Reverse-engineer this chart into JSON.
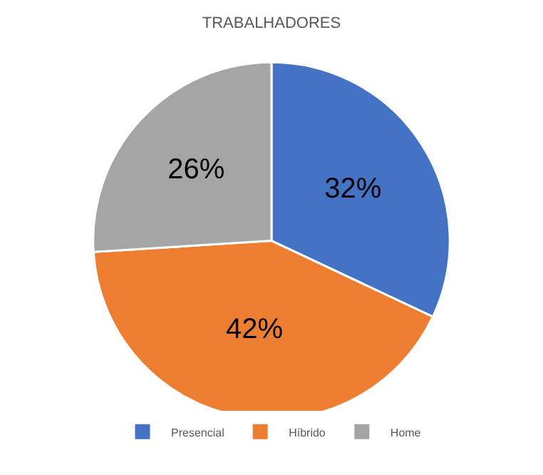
{
  "chart_data": {
    "type": "pie",
    "title": "TRABALHADORES",
    "categories": [
      "Presencial",
      "Híbrido",
      "Home"
    ],
    "values": [
      32,
      42,
      26
    ],
    "colors": [
      "#4472c4",
      "#ed7d31",
      "#a5a5a5"
    ],
    "value_labels": [
      "32%",
      "42%",
      "26%"
    ],
    "legend": "bottom"
  }
}
